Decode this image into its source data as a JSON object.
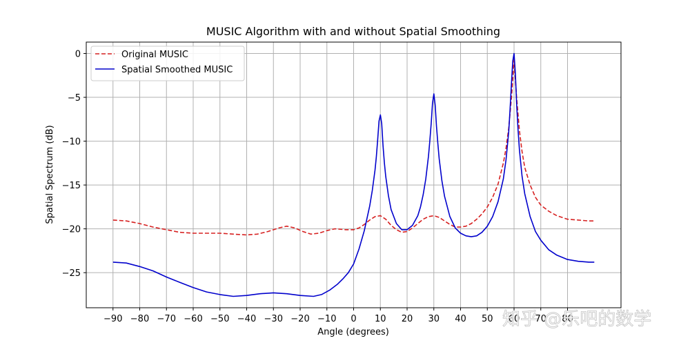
{
  "chart_data": {
    "type": "line",
    "title": "MUSIC Algorithm with and without Spatial Smoothing",
    "xlabel": "Angle (degrees)",
    "ylabel": "Spatial Spectrum (dB)",
    "xlim": [
      -100,
      100
    ],
    "ylim": [
      -29,
      1.3
    ],
    "xticks": [
      -90,
      -80,
      -70,
      -60,
      -50,
      -40,
      -30,
      -20,
      -10,
      0,
      10,
      20,
      30,
      40,
      50,
      60,
      70,
      80
    ],
    "xtick_labels": [
      "−90",
      "−80",
      "−70",
      "−60",
      "−50",
      "−40",
      "−30",
      "−20",
      "−10",
      "0",
      "10",
      "20",
      "30",
      "40",
      "50",
      "60",
      "70",
      "80"
    ],
    "yticks": [
      0,
      -5,
      -10,
      -15,
      -20,
      -25
    ],
    "ytick_labels": [
      "0",
      "−5",
      "−10",
      "−15",
      "−20",
      "−25"
    ],
    "grid": true,
    "legend_position": "upper-left",
    "series": [
      {
        "name": "Original MUSIC",
        "color": "#d62020",
        "style": "dashed",
        "x": [
          -90,
          -85,
          -80,
          -75,
          -70,
          -65,
          -60,
          -55,
          -50,
          -45,
          -40,
          -36,
          -32,
          -28,
          -25,
          -22,
          -19,
          -16,
          -13,
          -10,
          -7,
          -3,
          0,
          2,
          4,
          6,
          8,
          10,
          12,
          14,
          16,
          18,
          20,
          22,
          24,
          26,
          28,
          30,
          32,
          34,
          36,
          38,
          40,
          42,
          44,
          46,
          48,
          50,
          52,
          54,
          56,
          57,
          58,
          59,
          59.5,
          60,
          60.5,
          61,
          62,
          63,
          64,
          66,
          68,
          70,
          73,
          76,
          80,
          84,
          88,
          90
        ],
        "y": [
          -19,
          -19.1,
          -19.4,
          -19.8,
          -20.1,
          -20.4,
          -20.5,
          -20.5,
          -20.5,
          -20.6,
          -20.7,
          -20.6,
          -20.3,
          -19.9,
          -19.7,
          -19.9,
          -20.3,
          -20.6,
          -20.5,
          -20.2,
          -20.0,
          -20.1,
          -20.1,
          -19.9,
          -19.5,
          -19.0,
          -18.6,
          -18.5,
          -18.9,
          -19.6,
          -20.1,
          -20.4,
          -20.3,
          -19.9,
          -19.4,
          -18.9,
          -18.6,
          -18.5,
          -18.7,
          -19.1,
          -19.5,
          -19.8,
          -19.8,
          -19.7,
          -19.4,
          -18.9,
          -18.3,
          -17.5,
          -16.4,
          -14.9,
          -12.5,
          -10.8,
          -8.5,
          -5.2,
          -3,
          -0.7,
          -3,
          -5.2,
          -8.8,
          -11.2,
          -13.0,
          -15.0,
          -16.4,
          -17.3,
          -18.0,
          -18.5,
          -18.9,
          -19.0,
          -19.1,
          -19.1
        ]
      },
      {
        "name": "Spatial Smoothed MUSIC",
        "color": "#0000cc",
        "style": "solid",
        "x": [
          -90,
          -85,
          -80,
          -75,
          -70,
          -65,
          -60,
          -55,
          -50,
          -45,
          -40,
          -35,
          -30,
          -25,
          -20,
          -15,
          -12,
          -9,
          -6,
          -4,
          -2,
          0,
          2,
          4,
          6,
          7,
          8,
          8.5,
          9,
          9.5,
          10,
          10.5,
          11,
          11.5,
          12,
          13,
          14,
          16,
          18,
          20,
          22,
          24,
          25,
          26,
          27,
          28,
          28.5,
          29,
          29.5,
          30,
          30.5,
          31,
          31.5,
          32,
          33,
          34,
          36,
          38,
          40,
          42,
          44,
          46,
          48,
          50,
          52,
          54,
          56,
          57,
          58,
          58.5,
          59,
          59.5,
          60,
          60.5,
          61,
          61.5,
          62,
          63,
          64,
          66,
          68,
          70,
          73,
          76,
          80,
          84,
          88,
          90
        ],
        "y": [
          -23.8,
          -23.9,
          -24.3,
          -24.8,
          -25.5,
          -26.1,
          -26.7,
          -27.2,
          -27.5,
          -27.7,
          -27.6,
          -27.4,
          -27.3,
          -27.4,
          -27.6,
          -27.7,
          -27.5,
          -27.0,
          -26.3,
          -25.7,
          -25.0,
          -24.0,
          -22.3,
          -20.2,
          -17.4,
          -15.6,
          -13.3,
          -11.8,
          -9.8,
          -7.7,
          -7.0,
          -8.0,
          -10.5,
          -12.5,
          -14.0,
          -16.2,
          -17.8,
          -19.4,
          -20.1,
          -20.1,
          -19.6,
          -18.5,
          -17.5,
          -16.1,
          -14.3,
          -11.7,
          -10.0,
          -8.0,
          -5.7,
          -4.6,
          -5.9,
          -8.3,
          -10.3,
          -12.0,
          -14.5,
          -16.3,
          -18.6,
          -19.9,
          -20.5,
          -20.8,
          -20.9,
          -20.8,
          -20.4,
          -19.7,
          -18.6,
          -16.9,
          -14.3,
          -12.1,
          -8.9,
          -6.4,
          -3.6,
          -0.9,
          0,
          -2.3,
          -6.0,
          -8.7,
          -11.0,
          -14.0,
          -16.0,
          -18.6,
          -20.3,
          -21.3,
          -22.4,
          -23.0,
          -23.5,
          -23.7,
          -23.8,
          -23.8
        ]
      }
    ]
  },
  "watermark": {
    "text": "知乎 @乐吧的数学"
  }
}
